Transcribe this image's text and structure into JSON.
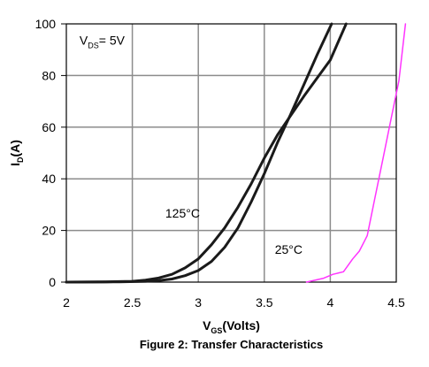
{
  "chart_data": {
    "type": "line",
    "title": "",
    "caption": "Figure 2: Transfer Characteristics",
    "xlabel": {
      "main": "V",
      "sub": "GS",
      "rest": "(Volts)"
    },
    "ylabel": {
      "main": "I",
      "sub": "D",
      "rest": "(A)"
    },
    "xlim": [
      2,
      4.5
    ],
    "ylim": [
      0,
      100
    ],
    "x_ticks": [
      2,
      2.5,
      3,
      3.5,
      4,
      4.5
    ],
    "x_tick_labels": [
      "2",
      "2.5",
      "3",
      "3.5",
      "4",
      "4.5"
    ],
    "y_ticks": [
      0,
      20,
      40,
      60,
      80,
      100
    ],
    "y_tick_labels": [
      "0",
      "20",
      "40",
      "60",
      "80",
      "100"
    ],
    "grid": true,
    "annotations": [
      {
        "id": "vds",
        "main": "V",
        "sub": "DS",
        "rest": "= 5V",
        "x": 2.1,
        "y": 92
      },
      {
        "id": "t125",
        "text": "125°C",
        "x": 2.75,
        "y": 25
      },
      {
        "id": "t25",
        "text": "25°C",
        "x": 3.58,
        "y": 11
      }
    ],
    "series": [
      {
        "label": "125°C",
        "color": "#1a1a1a",
        "x": [
          2.0,
          2.3,
          2.5,
          2.6,
          2.7,
          2.8,
          2.9,
          3.0,
          3.1,
          3.2,
          3.3,
          3.4,
          3.5,
          3.6,
          3.7,
          3.8,
          3.9,
          4.0,
          4.12
        ],
        "y": [
          0,
          0.1,
          0.3,
          0.8,
          1.6,
          3,
          5.5,
          9,
          14.5,
          21,
          29,
          38,
          48,
          57,
          64.5,
          72,
          79,
          86,
          100
        ]
      },
      {
        "label": "25°C",
        "color": "#1a1a1a",
        "x": [
          2.0,
          2.4,
          2.6,
          2.7,
          2.8,
          2.9,
          3.0,
          3.1,
          3.2,
          3.3,
          3.4,
          3.5,
          3.6,
          3.7,
          3.8,
          3.9,
          4.01
        ],
        "y": [
          0,
          0.1,
          0.3,
          0.6,
          1.2,
          2.5,
          4.5,
          8,
          13.5,
          21,
          31,
          42,
          54,
          65,
          76.5,
          88,
          100
        ]
      },
      {
        "label": "",
        "color": "#ff33ff",
        "x": [
          3.82,
          3.95,
          4.02,
          4.1,
          4.17,
          4.22,
          4.26,
          4.28,
          4.34,
          4.4,
          4.46,
          4.52,
          4.57
        ],
        "y": [
          0,
          1.5,
          3,
          4,
          9,
          12,
          16,
          18,
          33,
          48,
          63,
          78,
          100
        ]
      }
    ]
  }
}
